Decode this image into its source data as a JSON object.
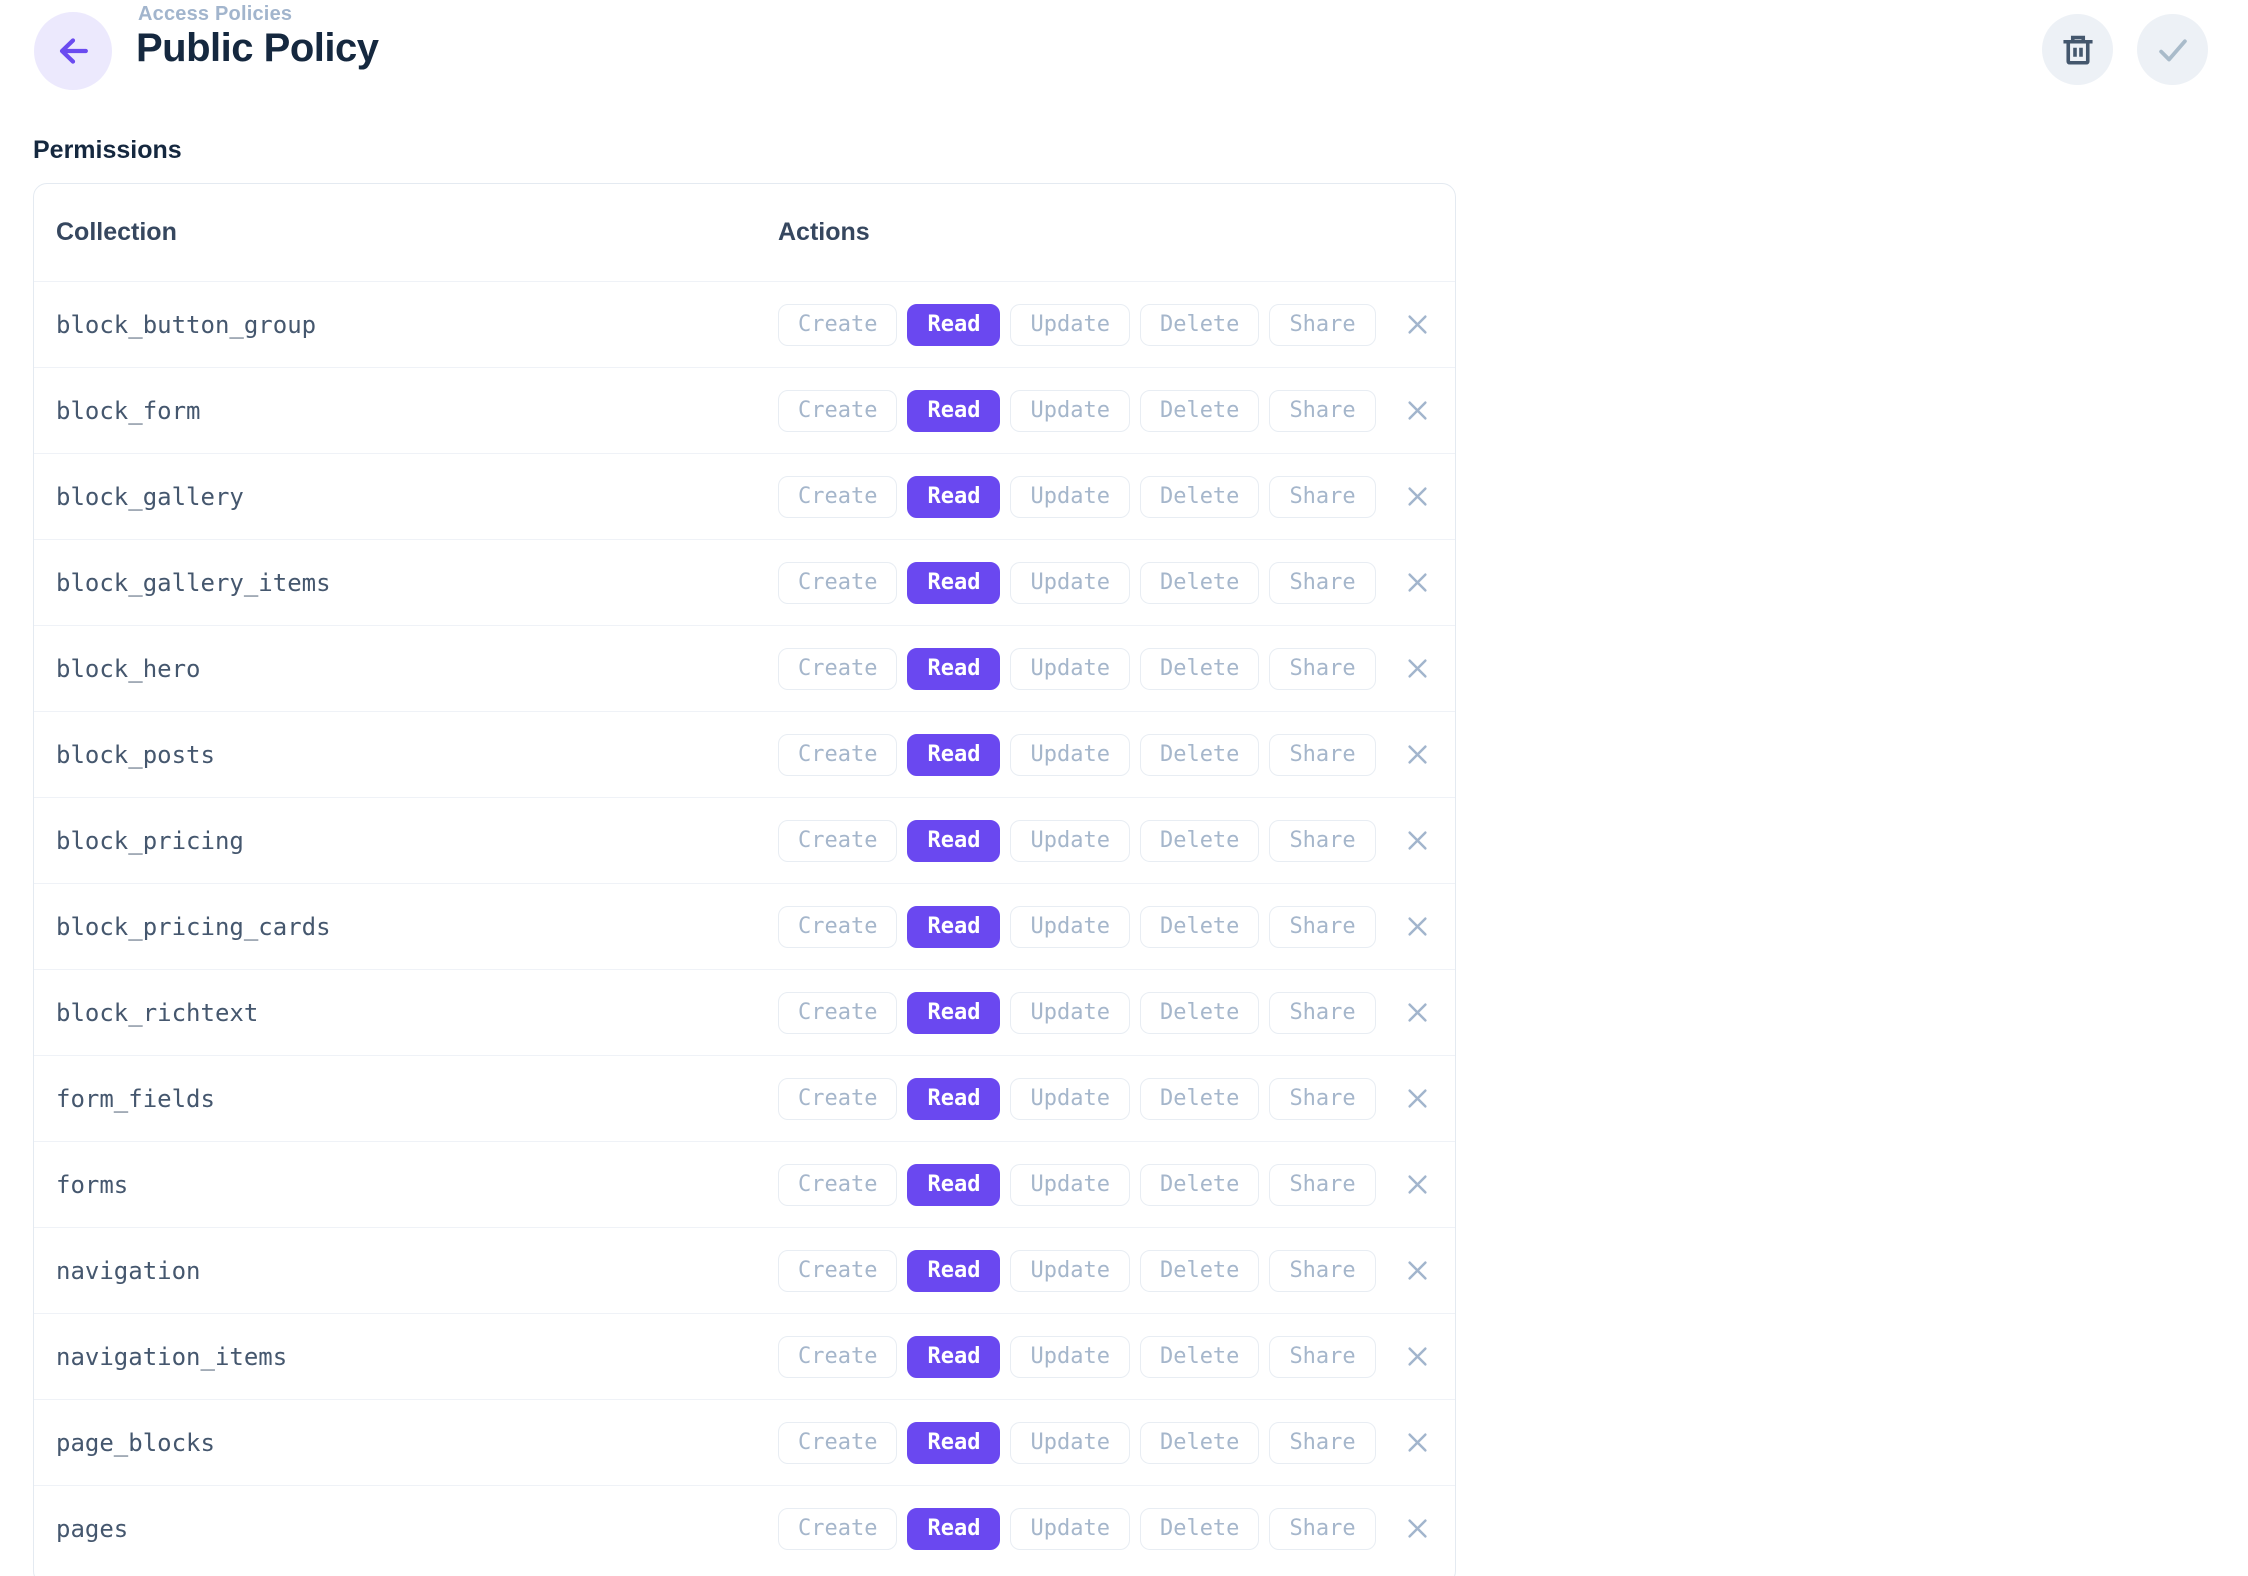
{
  "header": {
    "breadcrumb": "Access Policies",
    "title": "Public Policy",
    "back_icon": "arrow-left",
    "toolbar": [
      {
        "name": "delete-policy",
        "icon": "trash"
      },
      {
        "name": "save-policy",
        "icon": "check"
      }
    ]
  },
  "section": {
    "label": "Permissions"
  },
  "table": {
    "columns": [
      "Collection",
      "Actions"
    ],
    "action_labels": [
      "Create",
      "Read",
      "Update",
      "Delete",
      "Share"
    ],
    "remove_icon": "x",
    "rows": [
      {
        "collection": "block_button_group",
        "active": [
          "Read"
        ]
      },
      {
        "collection": "block_form",
        "active": [
          "Read"
        ]
      },
      {
        "collection": "block_gallery",
        "active": [
          "Read"
        ]
      },
      {
        "collection": "block_gallery_items",
        "active": [
          "Read"
        ]
      },
      {
        "collection": "block_hero",
        "active": [
          "Read"
        ]
      },
      {
        "collection": "block_posts",
        "active": [
          "Read"
        ]
      },
      {
        "collection": "block_pricing",
        "active": [
          "Read"
        ]
      },
      {
        "collection": "block_pricing_cards",
        "active": [
          "Read"
        ]
      },
      {
        "collection": "block_richtext",
        "active": [
          "Read"
        ]
      },
      {
        "collection": "form_fields",
        "active": [
          "Read"
        ]
      },
      {
        "collection": "forms",
        "active": [
          "Read"
        ]
      },
      {
        "collection": "navigation",
        "active": [
          "Read"
        ]
      },
      {
        "collection": "navigation_items",
        "active": [
          "Read"
        ]
      },
      {
        "collection": "page_blocks",
        "active": [
          "Read"
        ]
      },
      {
        "collection": "pages",
        "active": [
          "Read"
        ]
      }
    ]
  },
  "colors": {
    "accent_purple": "#6a48f0",
    "accent_purple_soft": "#ece9fd",
    "title_navy": "#15283f",
    "muted_blue_gray": "#a2b5cd",
    "mono_text": "#45576e",
    "border": "#e4eaf1",
    "divider": "#eff2f7",
    "circle_gray": "#edf1f6",
    "trash_icon": "#44576d",
    "check_icon": "#a9bbca"
  }
}
